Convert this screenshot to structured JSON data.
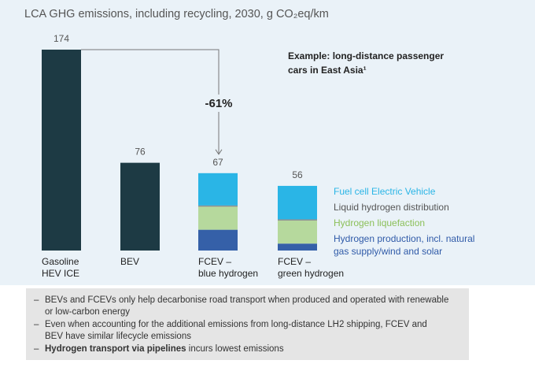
{
  "chart_data": {
    "type": "bar",
    "title": "LCA GHG emissions, including recycling, 2030, g CO₂eq/km",
    "example": "Example: long-distance passenger\ncars in East Asia¹",
    "annotation": "-61%",
    "categories": [
      "Gasoline\nHEV ICE",
      "BEV",
      "FCEV –\nblue hydrogen",
      "FCEV –\ngreen hydrogen"
    ],
    "values": [
      174,
      76,
      67,
      56
    ],
    "color": "#1d3a44",
    "series": [
      {
        "name": "Hydrogen production, incl. natural\ngas supply/wind and solar",
        "color": "#3560a8",
        "values": [
          null,
          null,
          18,
          6
        ]
      },
      {
        "name": "Hydrogen liquefaction",
        "color": "#b6d99d",
        "values": [
          null,
          null,
          20,
          20
        ]
      },
      {
        "name": "Liquid hydrogen distribution",
        "color": "#8a8a8a",
        "values": [
          null,
          null,
          1,
          1
        ]
      },
      {
        "name": "Fuel cell Electric Vehicle",
        "color": "#2ab5e6",
        "values": [
          null,
          null,
          28,
          29
        ]
      }
    ],
    "legend_text_colors": [
      "#2f5aa8",
      "#8cc05a",
      "#555555",
      "#2ab5e6"
    ]
  },
  "notes": [
    {
      "text": "BEVs and FCEVs only help decarbonise road transport when produced and operated with renewable or low-carbon energy"
    },
    {
      "text": "Even when accounting for the additional emissions from long-distance LH2 shipping, FCEV and BEV have similar lifecycle emissions"
    },
    {
      "bold": "Hydrogen transport via pipelines",
      "rest": " incurs lowest emissions"
    }
  ]
}
